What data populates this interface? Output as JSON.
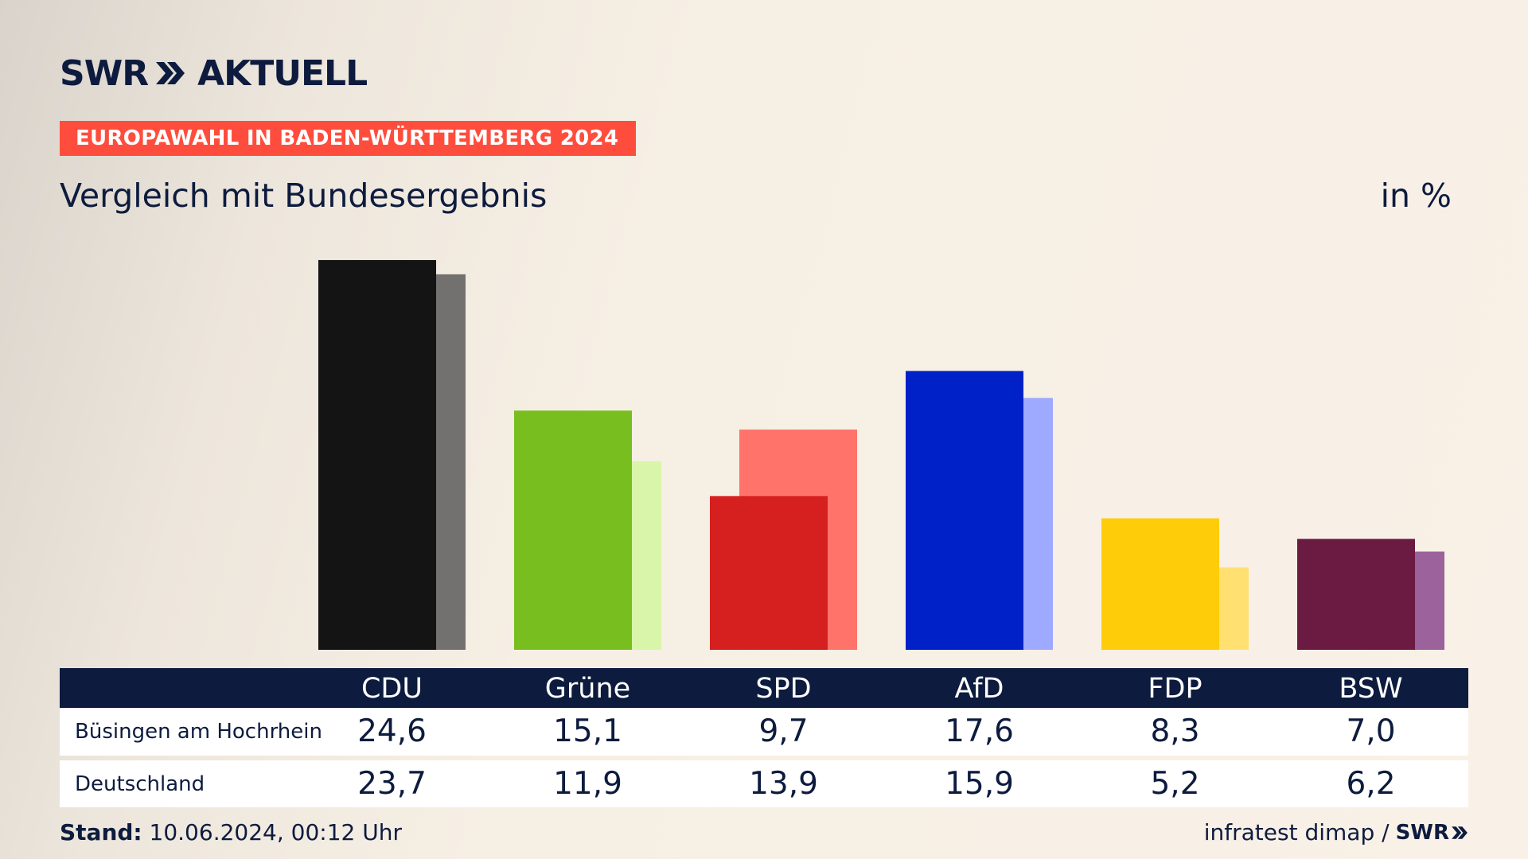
{
  "brand": {
    "name": "SWR",
    "product": "AKTUELL"
  },
  "badge": "EUROPAWAHL IN BADEN-WÜRTTEMBERG 2024",
  "subtitle": "Vergleich mit Bundesergebnis",
  "unit": "in %",
  "chart_data": {
    "type": "bar",
    "categories": [
      "CDU",
      "Grüne",
      "SPD",
      "AfD",
      "FDP",
      "BSW"
    ],
    "series": [
      {
        "name": "Büsingen am Hochrhein",
        "values": [
          24.6,
          15.1,
          9.7,
          17.6,
          8.3,
          7.0
        ],
        "display": [
          "24,6",
          "15,1",
          "9,7",
          "17,6",
          "8,3",
          "7,0"
        ]
      },
      {
        "name": "Deutschland",
        "values": [
          23.7,
          11.9,
          13.9,
          15.9,
          5.2,
          6.2
        ],
        "display": [
          "23,7",
          "11,9",
          "13,9",
          "15,9",
          "5,2",
          "6,2"
        ]
      }
    ],
    "colors": {
      "primary": [
        "#141414",
        "#78be1e",
        "#d61f1f",
        "#0021c8",
        "#ffcc0a",
        "#6b1a41"
      ],
      "secondary": [
        "#737170",
        "#d9f5aa",
        "#ff736b",
        "#9daaff",
        "#ffe070",
        "#9b629b"
      ]
    },
    "ylim": [
      0,
      25
    ]
  },
  "footer": {
    "stand_label": "Stand:",
    "stand_value": "10.06.2024, 00:12 Uhr",
    "source": "infratest dimap /",
    "source_logo": "SWR"
  }
}
